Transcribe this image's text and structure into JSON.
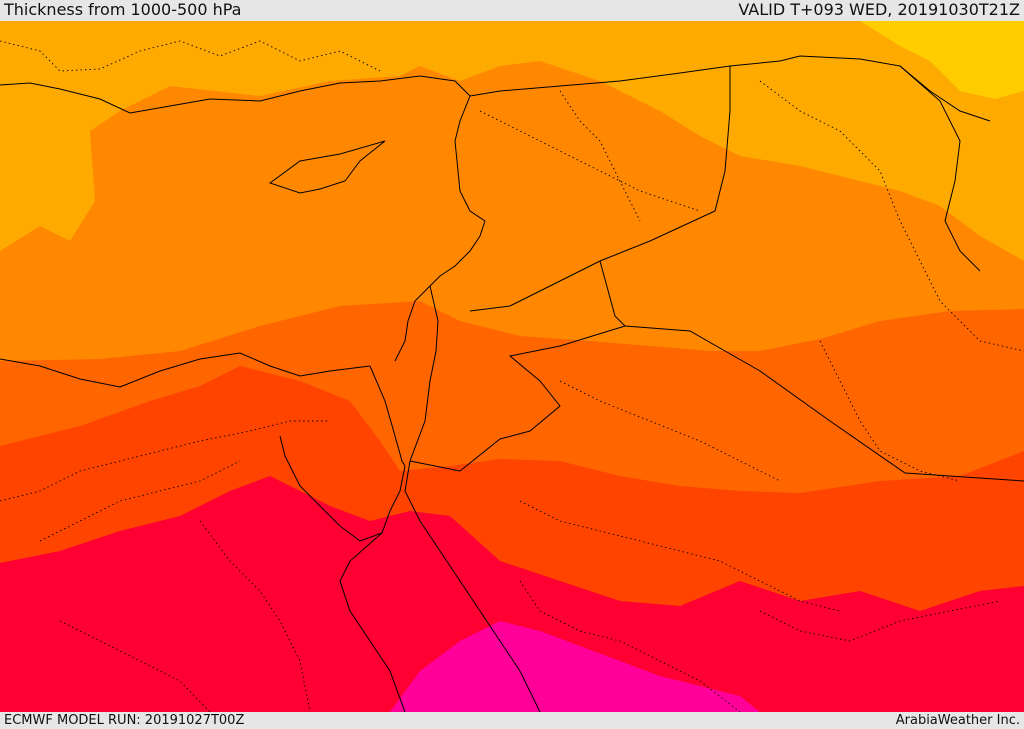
{
  "header": {
    "title": "Thickness from 1000-500 hPa",
    "valid": "VALID T+093 WED, 20191030T21Z"
  },
  "footer": {
    "model_run": "ECMWF MODEL RUN: 20191027T00Z",
    "credit": "ArabiaWeather Inc."
  },
  "map": {
    "region": "Eastern Mediterranean / Levant / Arabian Peninsula",
    "field": "1000-500 hPa thickness",
    "colors": {
      "band_1": "#FFCC00",
      "band_2": "#FFAA00",
      "band_3": "#FF8800",
      "band_4": "#FF6600",
      "band_5": "#FF4400",
      "band_6": "#FF0033",
      "band_7": "#FF0099",
      "borders": "#000000"
    }
  }
}
